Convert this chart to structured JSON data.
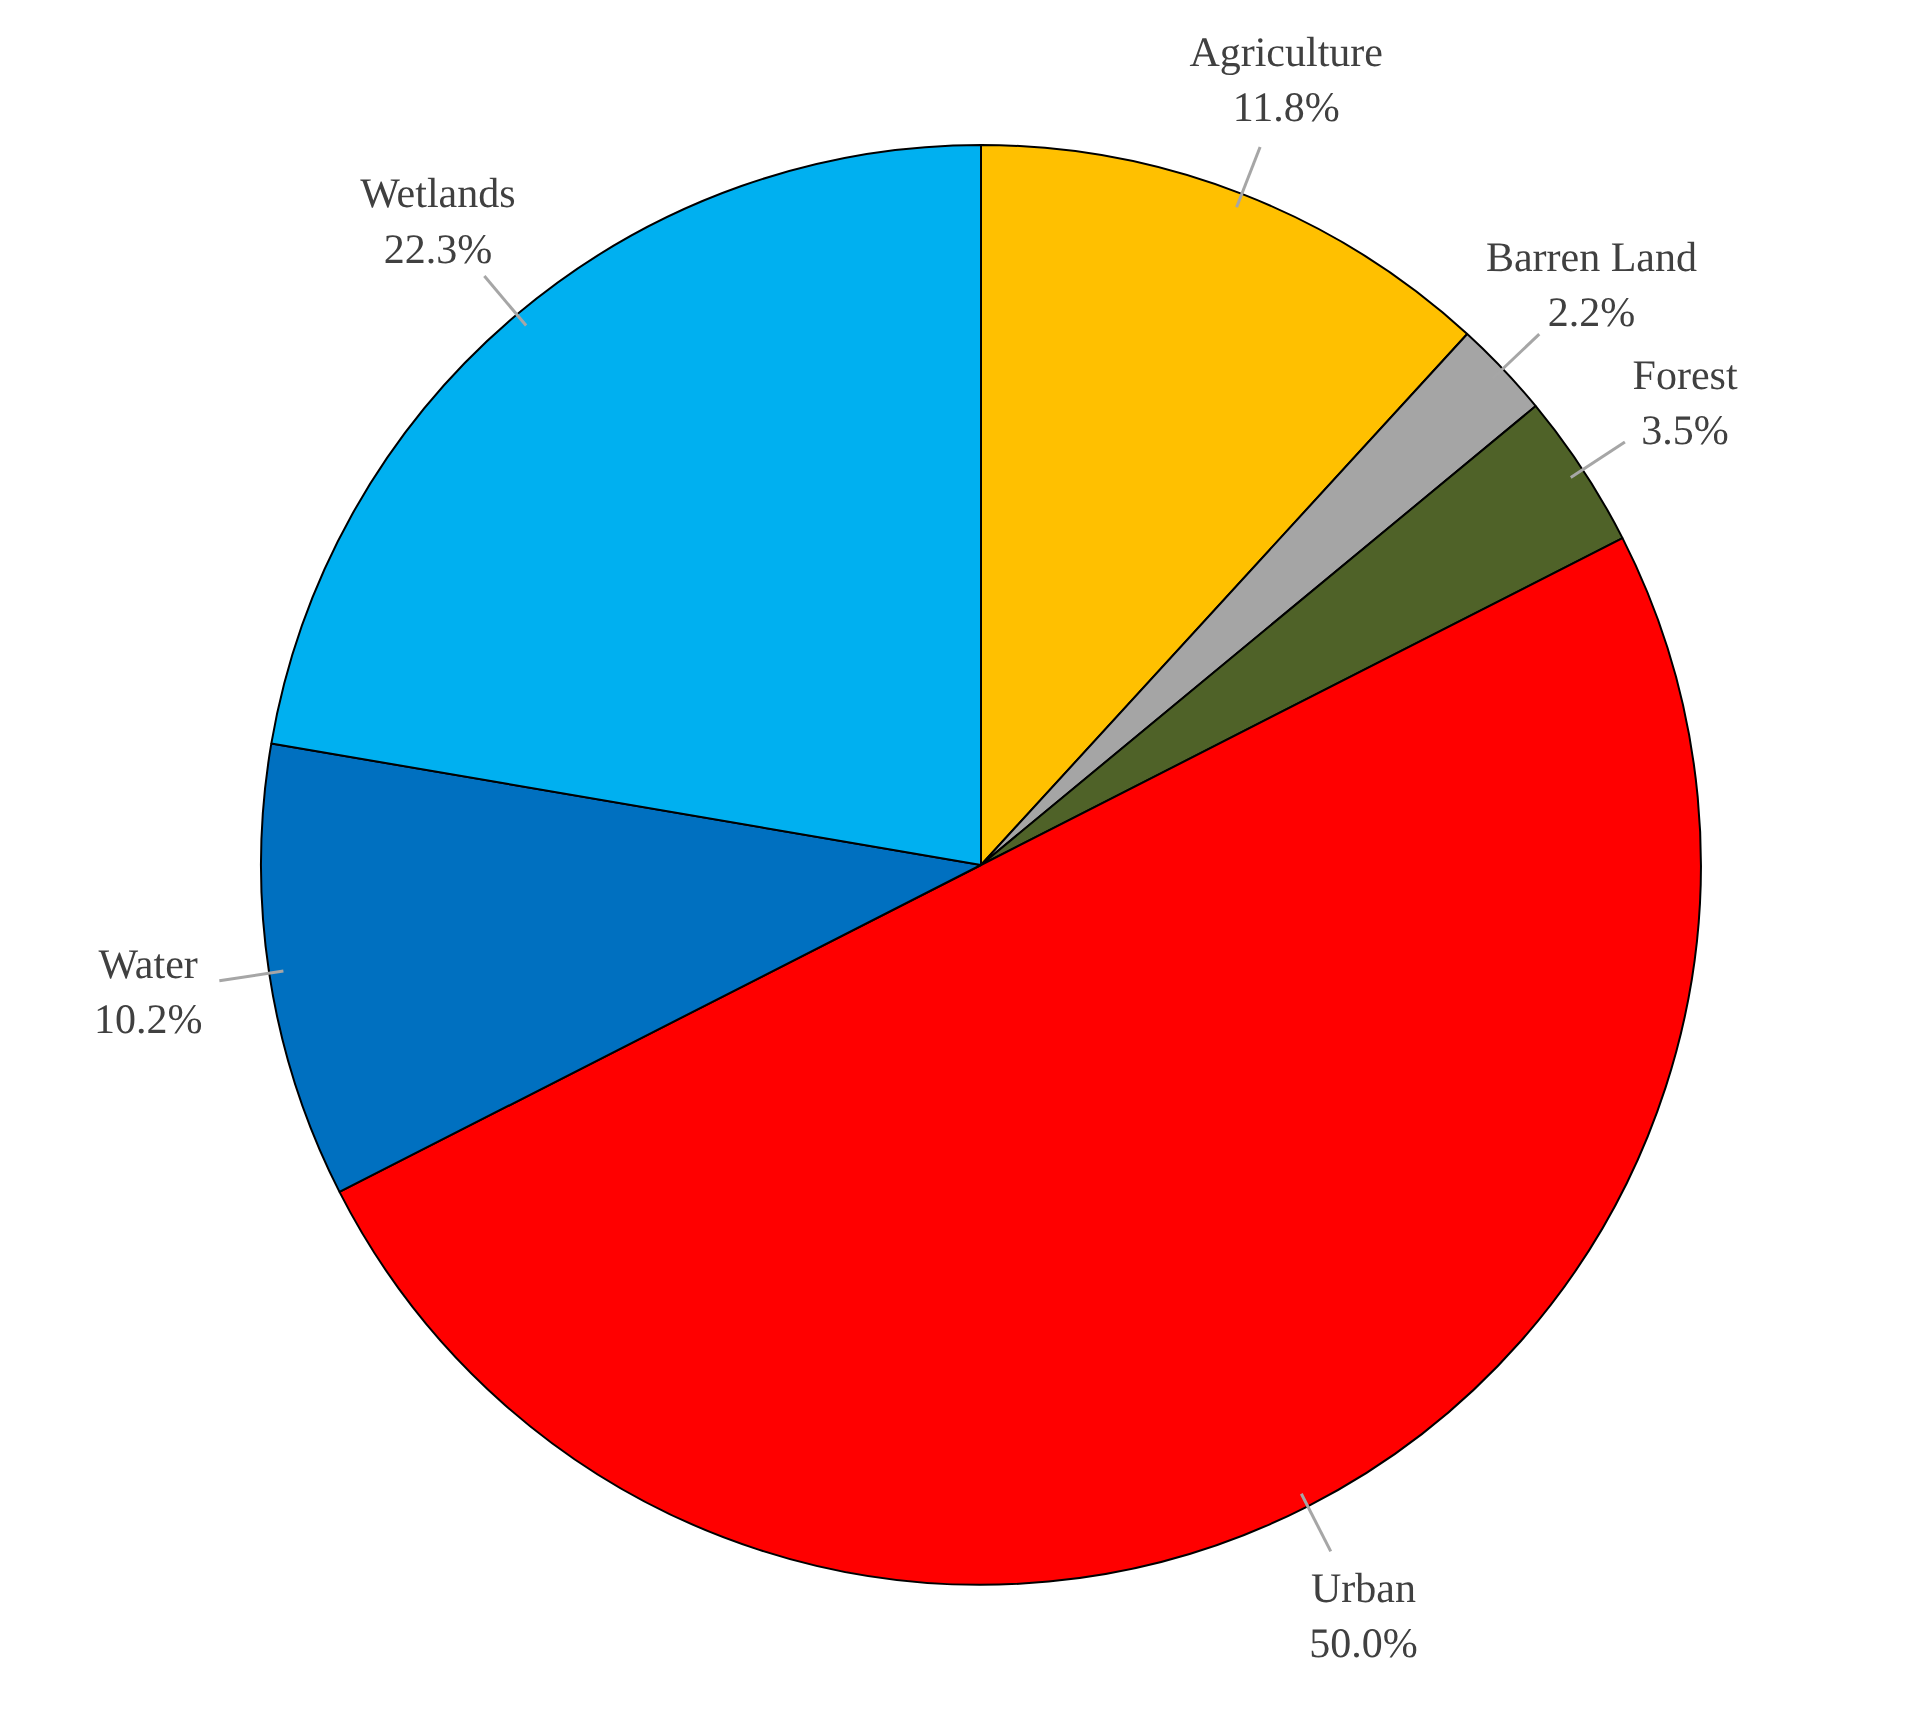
{
  "chart_data": {
    "type": "pie",
    "categories": [
      "Agriculture",
      "Barren Land",
      "Forest",
      "Urban",
      "Water",
      "Wetlands"
    ],
    "values": [
      11.8,
      2.2,
      3.5,
      50.0,
      10.2,
      22.3
    ],
    "value_labels": [
      "11.8%",
      "2.2%",
      "3.5%",
      "50.0%",
      "10.2%",
      "22.3%"
    ],
    "colors": [
      "#ffc000",
      "#a5a5a5",
      "#4f6228",
      "#ff0000",
      "#0070c0",
      "#00b0f0"
    ]
  }
}
